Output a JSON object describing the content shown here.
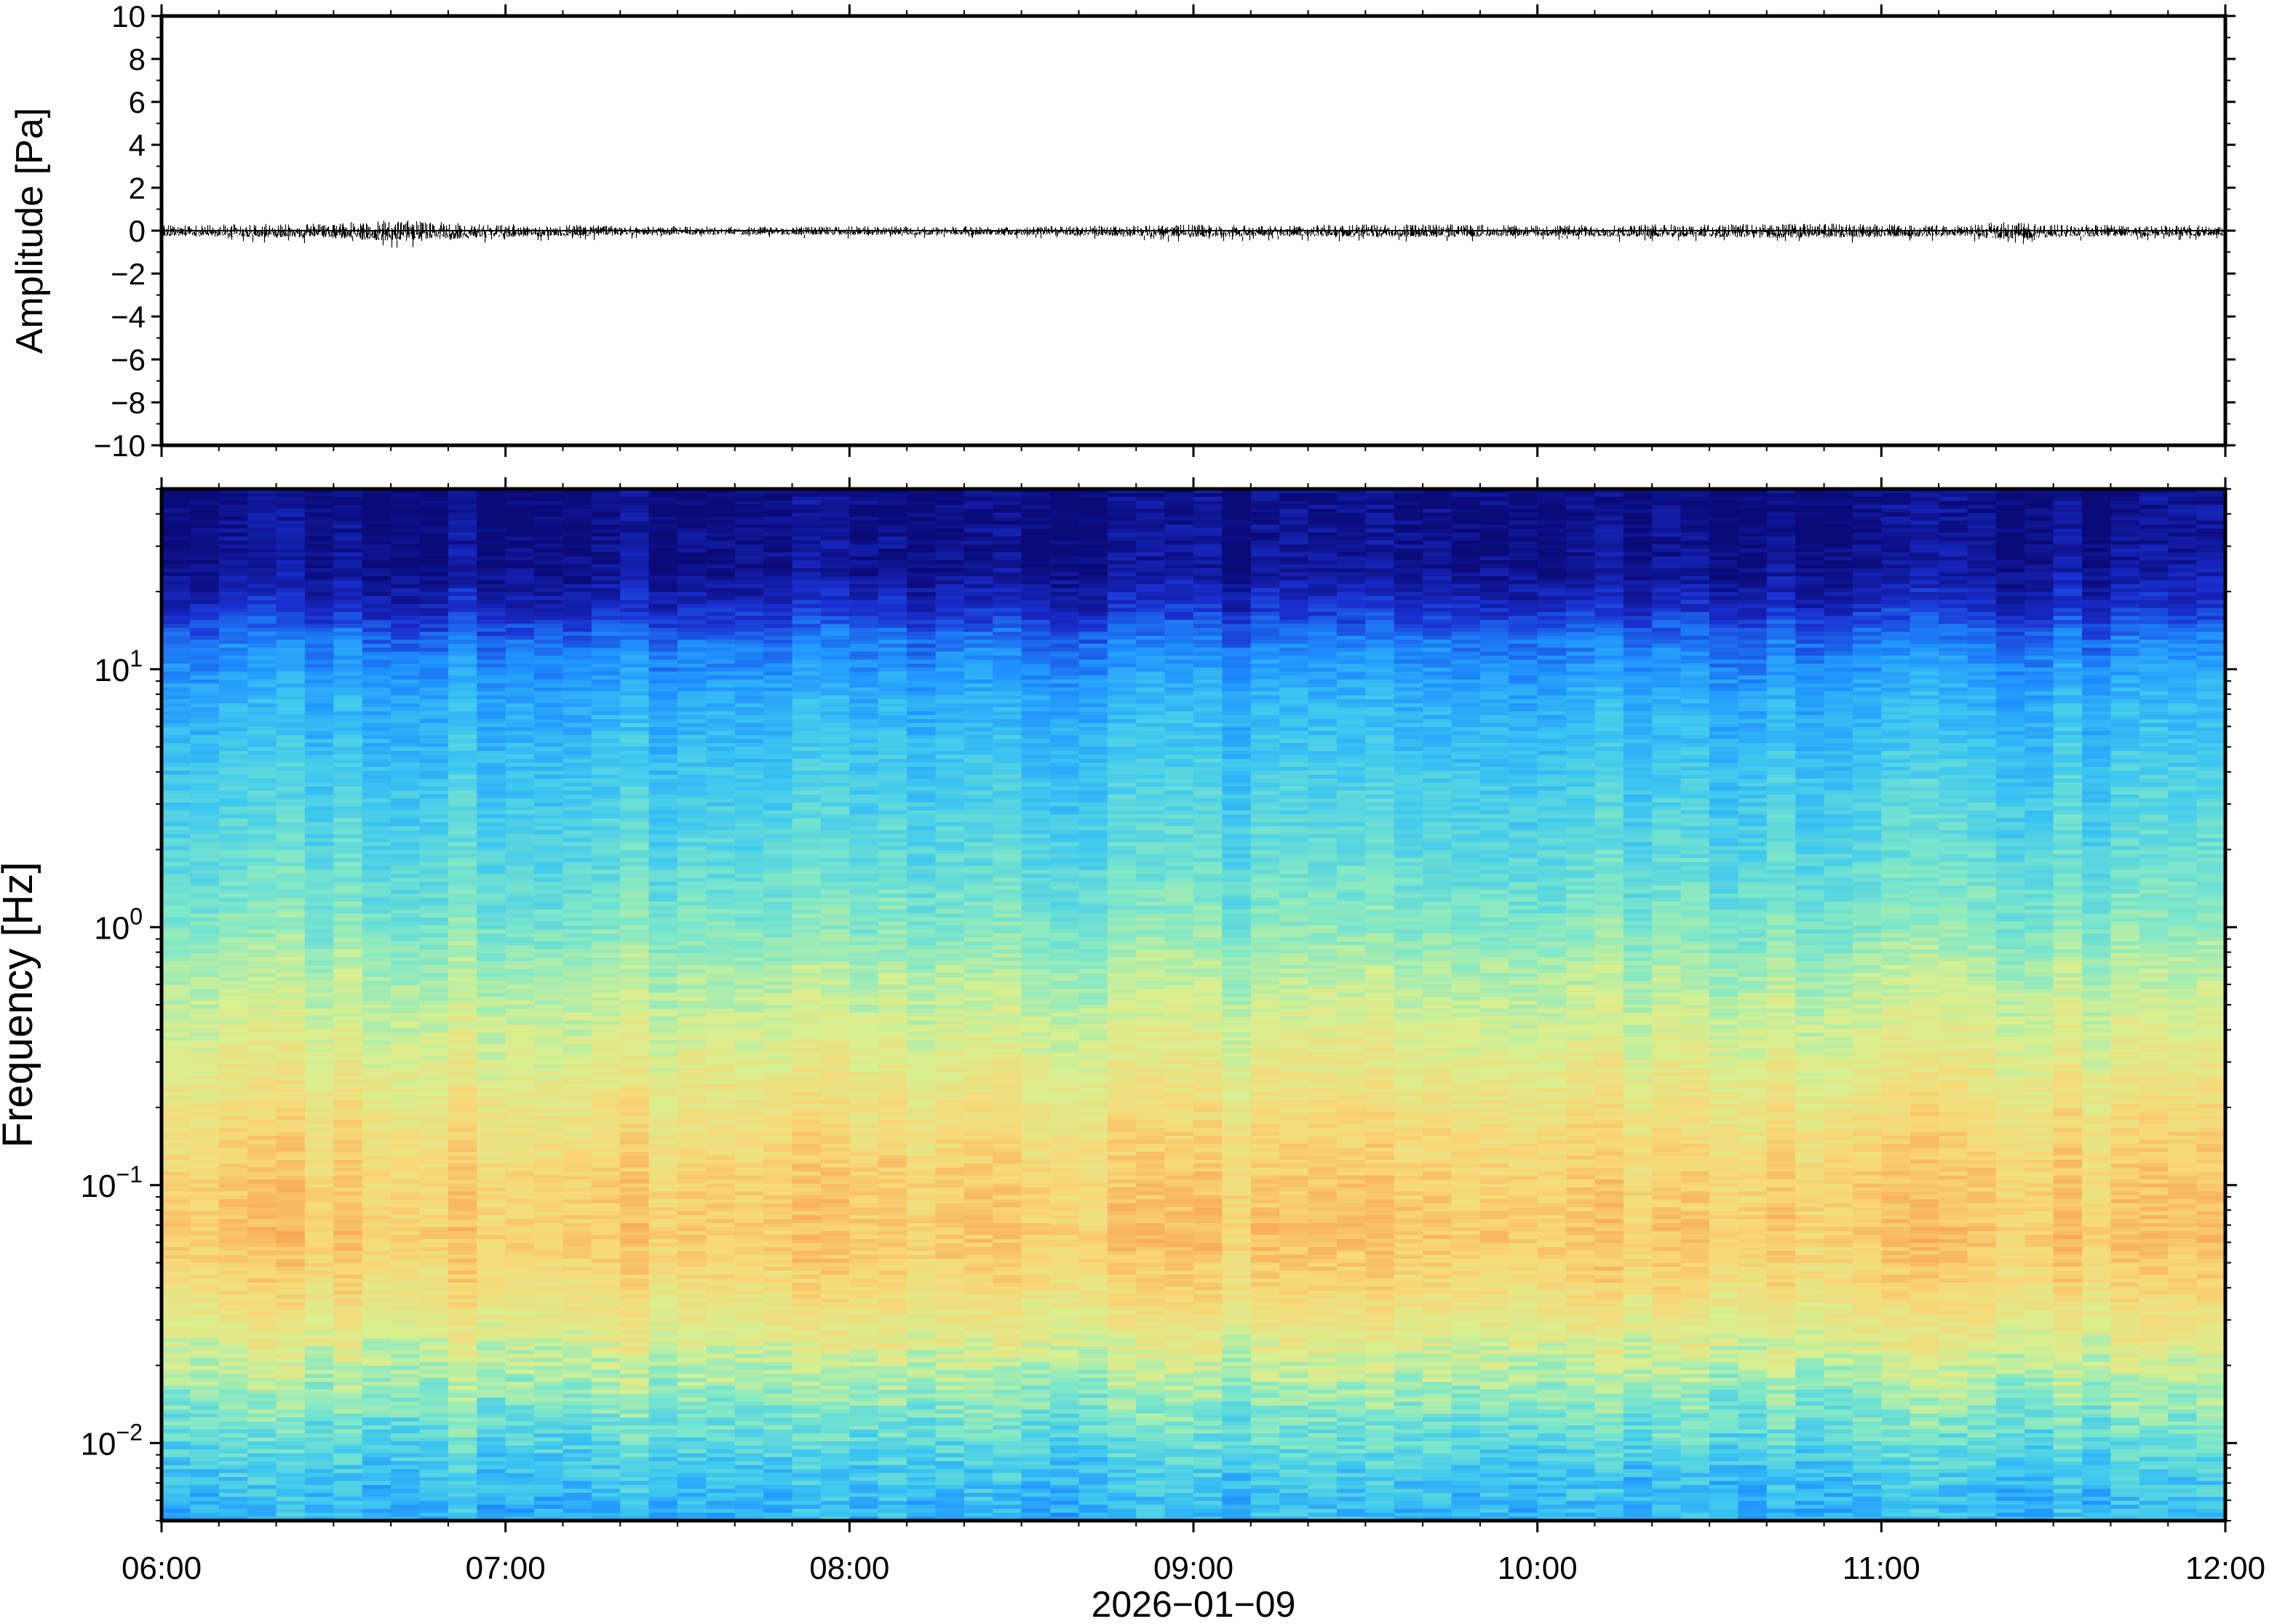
{
  "chart_data": [
    {
      "type": "line",
      "ylabel": "Amplitude [Pa]",
      "ylim": [
        -10,
        10
      ],
      "yticks": [
        "10",
        "8",
        "6",
        "4",
        "2",
        "0",
        "−2",
        "−4",
        "−6",
        "−8",
        "−10"
      ],
      "xlim": [
        "06:00",
        "12:00"
      ],
      "x_start_hour": 6,
      "x_end_hour": 12,
      "baseline": 0,
      "envelope": {
        "times": [
          "06:00",
          "06:15",
          "06:30",
          "06:40",
          "06:50",
          "07:00",
          "07:15",
          "07:30",
          "07:45",
          "08:00",
          "08:15",
          "08:30",
          "08:45",
          "09:00",
          "09:15",
          "09:30",
          "09:45",
          "10:00",
          "10:15",
          "10:30",
          "10:45",
          "11:00",
          "11:15",
          "11:20",
          "11:30",
          "11:45",
          "12:00"
        ],
        "amplitude_pa": [
          0.25,
          0.3,
          0.35,
          0.5,
          0.4,
          0.3,
          0.25,
          0.2,
          0.2,
          0.2,
          0.2,
          0.2,
          0.25,
          0.3,
          0.25,
          0.3,
          0.3,
          0.25,
          0.3,
          0.3,
          0.35,
          0.3,
          0.25,
          0.4,
          0.3,
          0.25,
          0.25
        ]
      },
      "line_color": "#000000"
    },
    {
      "type": "heatmap",
      "ylabel": "Frequency [Hz]",
      "yscale": "log",
      "ylim": [
        0.005,
        50
      ],
      "yticks": [
        {
          "base": "10",
          "exp": "−2",
          "value": 0.01
        },
        {
          "base": "10",
          "exp": "−1",
          "value": 0.1
        },
        {
          "base": "10",
          "exp": "0",
          "value": 1
        },
        {
          "base": "10",
          "exp": "1",
          "value": 10
        }
      ],
      "xlabel": "2026−01−09",
      "xticks": [
        "06:00",
        "07:00",
        "08:00",
        "09:00",
        "10:00",
        "11:00",
        "12:00"
      ],
      "colormap": [
        "#0a0a78",
        "#1a2fd0",
        "#1e90ff",
        "#3ec8f0",
        "#80e8c8",
        "#d8f090",
        "#f8d878",
        "#f8a050"
      ],
      "power_profile": {
        "log10_freq": [
          -2.3,
          -2.15,
          -2.0,
          -1.8,
          -1.6,
          -1.4,
          -1.2,
          -1.0,
          -0.8,
          -0.6,
          -0.4,
          -0.2,
          0.0,
          0.3,
          0.6,
          0.9,
          1.1,
          1.25,
          1.4,
          1.7
        ],
        "relative_level": [
          0.38,
          0.42,
          0.5,
          0.62,
          0.74,
          0.84,
          0.9,
          0.88,
          0.84,
          0.78,
          0.72,
          0.66,
          0.58,
          0.5,
          0.44,
          0.36,
          0.26,
          0.12,
          0.04,
          0.02
        ]
      }
    }
  ]
}
